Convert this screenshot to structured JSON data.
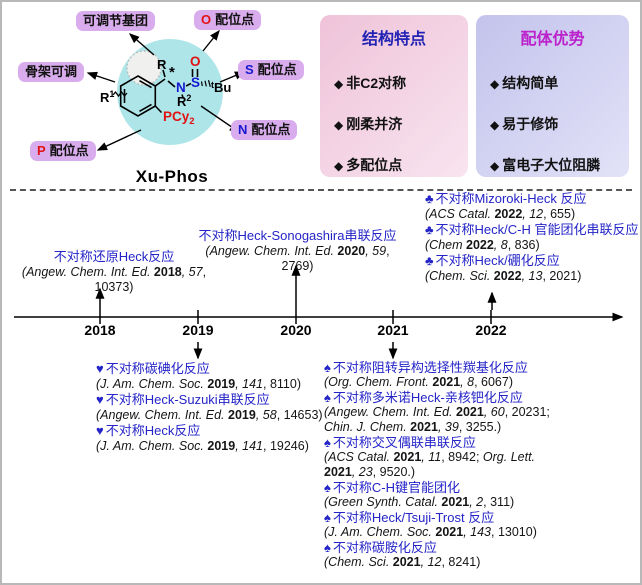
{
  "colors": {
    "pill_bg": "#d9aded",
    "circle_cyan": "#aee5e9",
    "dotted_fill": "#f0f0ee",
    "box_pink": "#efc3d9",
    "box_pink_light": "#f8e4ef",
    "box_lavender": "#c3c3ec",
    "box_lavender_light": "#e2e2f8",
    "title_blue": "#2222b4",
    "title_magenta": "#bb22cc",
    "link_blue": "#2424c8",
    "atom_red": "#e01212",
    "atom_blue": "#1818d2"
  },
  "ligand": {
    "name": "Xu-Phos",
    "atoms": {
      "r": "R",
      "stereo": "*",
      "r1_main": "R",
      "r1_sup": "1",
      "r2_main": "R",
      "r2_sup": "2",
      "n": "N",
      "s": "S",
      "o": "O",
      "bu_sup": "t",
      "bu": "Bu",
      "p_main": "PCy",
      "p_sub": "2"
    },
    "labels": {
      "adjustable_group": "可调节基团",
      "skeleton": "骨架可调",
      "o_atom": "O",
      "s_atom": "S",
      "n_atom": "N",
      "p_atom": "P",
      "site_suffix": "配位点"
    }
  },
  "boxes": {
    "features": {
      "title": "结构特点",
      "bullet": "◆",
      "items": [
        "非C2对称",
        "刚柔并济",
        "多配位点"
      ]
    },
    "advantages": {
      "title": "配体优势",
      "bullet": "◆",
      "items": [
        "结构简单",
        "易于修饰",
        "富电子大位阻膦"
      ]
    }
  },
  "timeline": {
    "years": [
      "2018",
      "2019",
      "2020",
      "2021",
      "2022"
    ],
    "groups": {
      "y2018": {
        "bullet": "",
        "items": [
          {
            "title": "不对称还原Heck反应",
            "ref": [
              [
                "(Angew. Chem. Int. Ed.",
                "i"
              ],
              [
                " 2018",
                "b"
              ],
              [
                ", 57",
                "i"
              ],
              [
                ", 10373)",
                "n"
              ]
            ]
          }
        ]
      },
      "y2020": {
        "bullet": "",
        "items": [
          {
            "title": "不对称Heck-Sonogashira串联反应",
            "ref": [
              [
                "(Angew. Chem. Int. Ed.",
                "i"
              ],
              [
                " 2020",
                "b"
              ],
              [
                ", 59",
                "i"
              ],
              [
                ", 2769)",
                "n"
              ]
            ]
          }
        ]
      },
      "y2022": {
        "bullet": "♣",
        "items": [
          {
            "title": "不对称Mizoroki-Heck 反应",
            "ref": [
              [
                "(ACS Catal.",
                "i"
              ],
              [
                " 2022",
                "b"
              ],
              [
                ", 12",
                "i"
              ],
              [
                ", 655)",
                "n"
              ]
            ]
          },
          {
            "title": "不对称Heck/C-H 官能团化串联反应",
            "ref": [
              [
                "(Chem",
                "i"
              ],
              [
                " 2022",
                "b"
              ],
              [
                ", 8",
                "i"
              ],
              [
                ", 836)",
                "n"
              ]
            ]
          },
          {
            "title": "不对称Heck/硼化反应",
            "ref": [
              [
                "(Chem. Sci.",
                "i"
              ],
              [
                " 2022",
                "b"
              ],
              [
                ", 13",
                "i"
              ],
              [
                ", 2021)",
                "n"
              ]
            ]
          }
        ]
      },
      "y2019": {
        "bullet": "♥",
        "items": [
          {
            "title": "不对称碳碘化反应",
            "ref": [
              [
                "(J. Am. Chem. Soc.",
                "i"
              ],
              [
                " 2019",
                "b"
              ],
              [
                ", 141",
                "i"
              ],
              [
                ", 8110)",
                "n"
              ]
            ]
          },
          {
            "title": "不对称Heck-Suzuki串联反应",
            "ref": [
              [
                "(Angew. Chem. Int. Ed.",
                "i"
              ],
              [
                " 2019",
                "b"
              ],
              [
                ", 58",
                "i"
              ],
              [
                ", 14653)",
                "n"
              ]
            ]
          },
          {
            "title": "不对称Heck反应",
            "ref": [
              [
                "(J. Am. Chem. Soc.",
                "i"
              ],
              [
                " 2019",
                "b"
              ],
              [
                ", 141",
                "i"
              ],
              [
                ", 19246)",
                "n"
              ]
            ]
          }
        ]
      },
      "y2021": {
        "bullet": "♠",
        "items": [
          {
            "title": "不对称阻转异构选择性羰基化反应",
            "ref": [
              [
                "(Org. Chem. Front.",
                "i"
              ],
              [
                " 2021",
                "b"
              ],
              [
                ", 8",
                "i"
              ],
              [
                ", 6067)",
                "n"
              ]
            ]
          },
          {
            "title": "不对称多米诺Heck-亲核钯化反应",
            "ref": [
              [
                "(Angew. Chem. Int. Ed.",
                "i"
              ],
              [
                " 2021",
                "b"
              ],
              [
                ", 60",
                "i"
              ],
              [
                ", 20231;",
                "n"
              ],
              [
                "\n",
                "n"
              ],
              [
                "Chin. J. Chem.",
                "i"
              ],
              [
                " 2021",
                "b"
              ],
              [
                ", 39",
                "i"
              ],
              [
                ", 3255.)",
                "n"
              ]
            ]
          },
          {
            "title": "不对称交叉偶联串联反应",
            "ref": [
              [
                "(ACS Catal.",
                "i"
              ],
              [
                " 2021",
                "b"
              ],
              [
                ", 11",
                "i"
              ],
              [
                ", 8942; ",
                "n"
              ],
              [
                "Org. Lett.",
                "i"
              ],
              [
                "\n",
                "n"
              ],
              [
                "2021",
                "b"
              ],
              [
                ", 23",
                "i"
              ],
              [
                ", 9520.)",
                "n"
              ]
            ]
          },
          {
            "title": "不对称C-H键官能团化",
            "ref": [
              [
                "(Green Synth. Catal.",
                "i"
              ],
              [
                " 2021",
                "b"
              ],
              [
                ", 2",
                "i"
              ],
              [
                ", 311)",
                "n"
              ]
            ]
          },
          {
            "title": "不对称Heck/Tsuji-Trost 反应",
            "ref": [
              [
                "(J. Am. Chem. Soc.",
                "i"
              ],
              [
                " 2021",
                "b"
              ],
              [
                ", 143",
                "i"
              ],
              [
                ", 13010)",
                "n"
              ]
            ]
          },
          {
            "title": "不对称碳胺化反应",
            "ref": [
              [
                "(Chem. Sci.",
                "i"
              ],
              [
                " 2021",
                "b"
              ],
              [
                ", 12",
                "i"
              ],
              [
                ", 8241)",
                "n"
              ]
            ]
          }
        ]
      }
    }
  }
}
